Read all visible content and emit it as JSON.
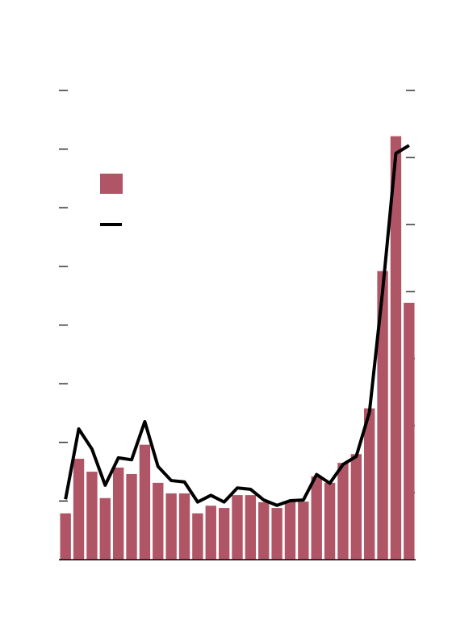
{
  "chart_data": {
    "type": "bar-line",
    "series": [
      {
        "type": "bar",
        "color": "#b05566",
        "values": [
          0.79,
          1.72,
          1.5,
          1.05,
          1.57,
          1.46,
          1.96,
          1.31,
          1.13,
          1.13,
          0.79,
          0.92,
          0.88,
          1.1,
          1.1,
          0.98,
          0.88,
          0.99,
          0.99,
          1.42,
          1.31,
          1.65,
          1.8,
          2.58,
          4.92,
          7.22,
          4.38
        ]
      },
      {
        "type": "line",
        "axis": "y2",
        "color": "#000000",
        "values": [
          0.9,
          1.95,
          1.65,
          1.11,
          1.52,
          1.49,
          2.06,
          1.39,
          1.18,
          1.16,
          0.86,
          0.96,
          0.86,
          1.07,
          1.05,
          0.89,
          0.81,
          0.88,
          0.89,
          1.27,
          1.14,
          1.42,
          1.54,
          2.2,
          4.01,
          6.06,
          6.18
        ]
      }
    ],
    "ylim": [
      0,
      8
    ],
    "yticks": [
      1,
      2,
      3,
      4,
      5,
      6,
      7,
      8
    ],
    "y2lim": [
      0,
      7
    ],
    "y2ticks": [
      1,
      2,
      3,
      4,
      5,
      6,
      7
    ]
  }
}
